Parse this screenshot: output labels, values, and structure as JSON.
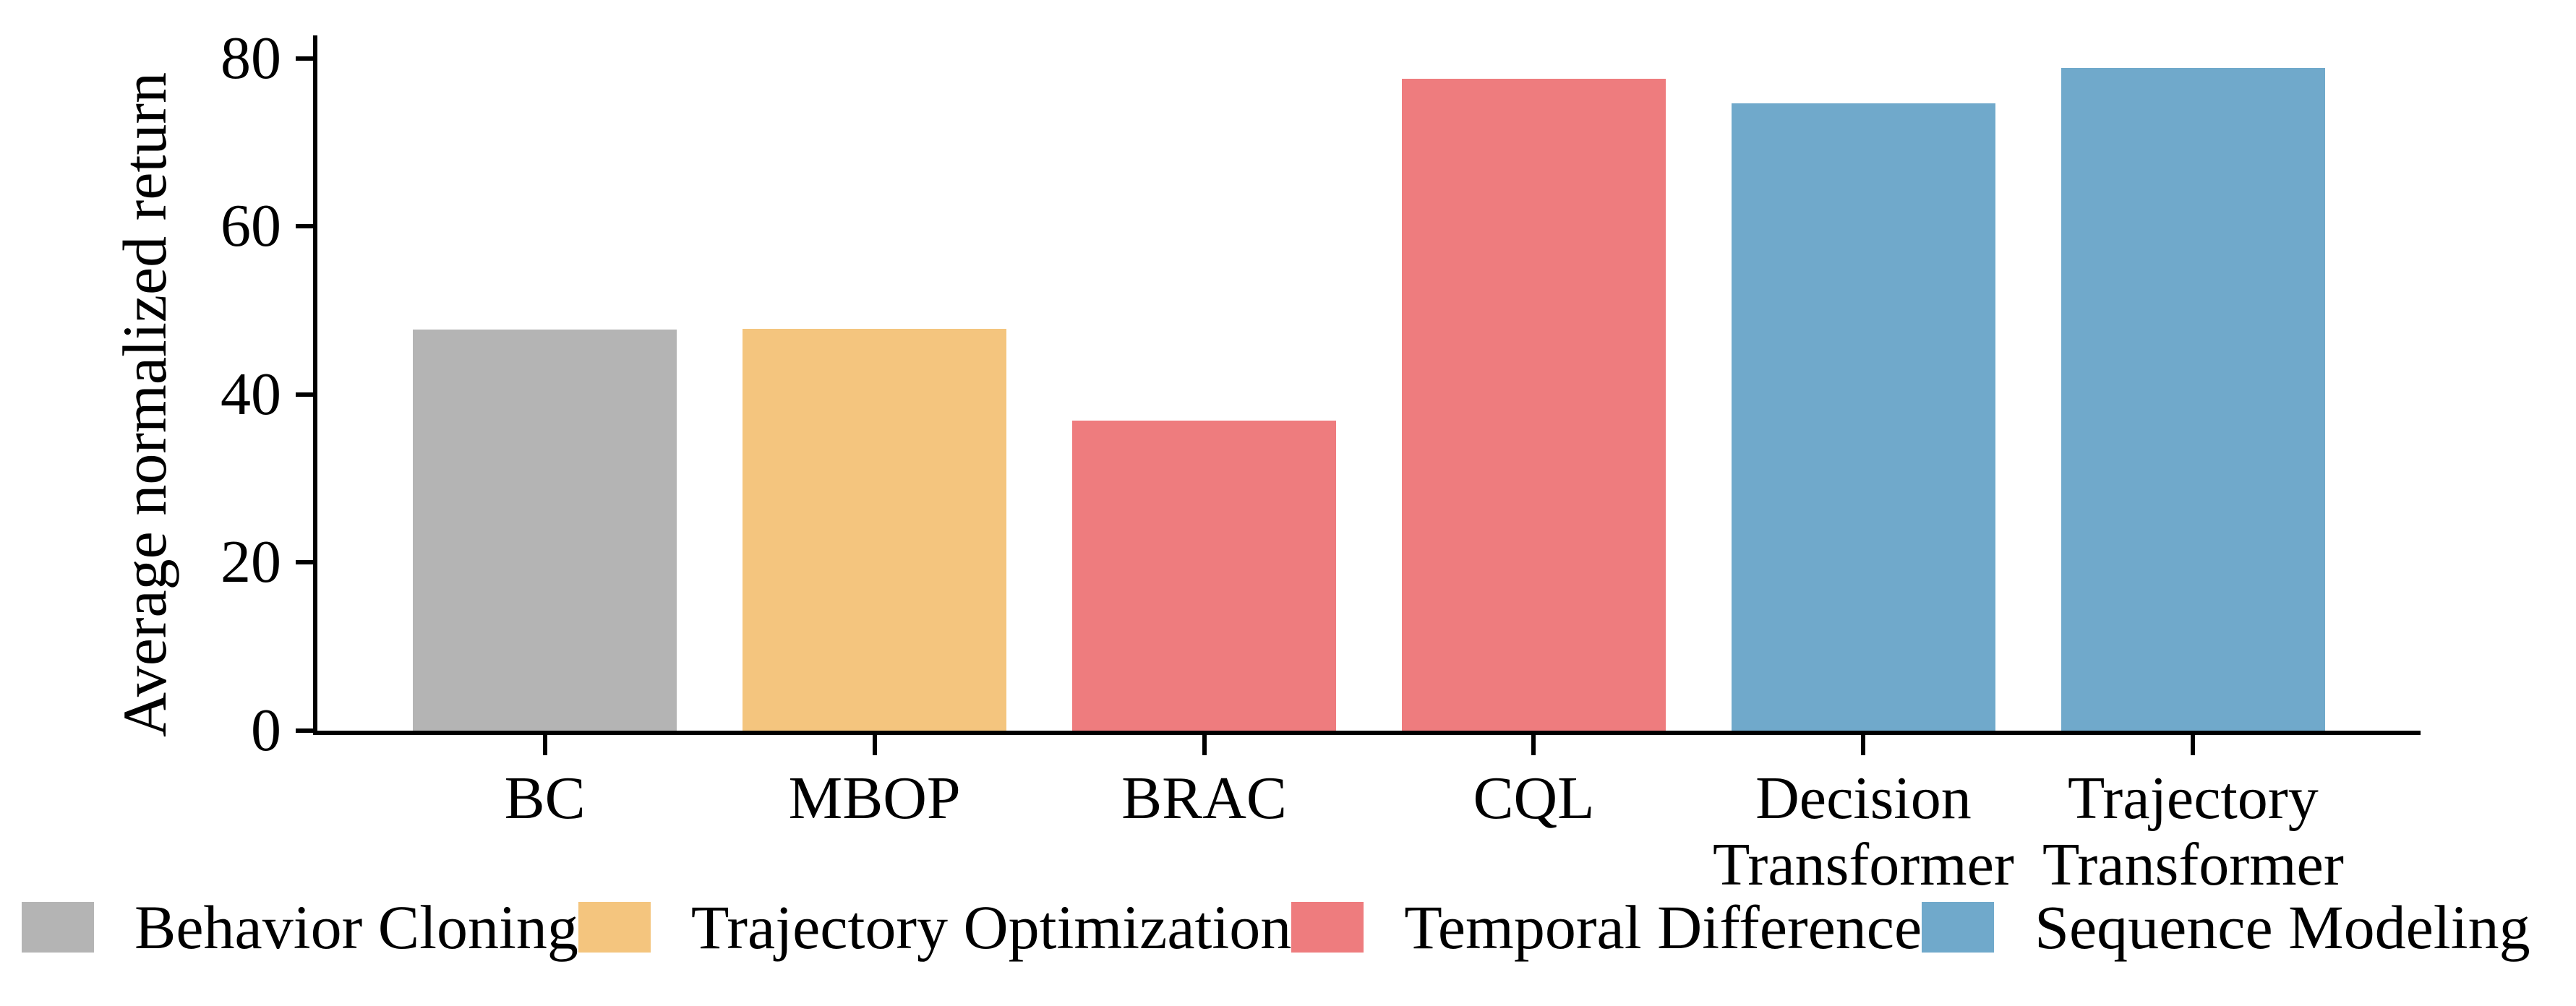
{
  "figure": {
    "background": "#ffffff",
    "axis_color": "#000000",
    "text_color": "#000000"
  },
  "chart_data": {
    "type": "bar",
    "title": "",
    "xlabel": "",
    "ylabel": "Average normalized return",
    "ylim": [
      0,
      82.75
    ],
    "yticks": [
      0,
      20,
      40,
      60,
      80
    ],
    "grid": false,
    "despined": [
      "top",
      "right"
    ],
    "categories": [
      "BC",
      "MBOP",
      "BRAC",
      "CQL",
      "Decision\nTransformer",
      "Trajectory\nTransformer"
    ],
    "values": [
      47.7,
      47.8,
      36.9,
      77.6,
      74.7,
      78.9
    ],
    "bar_colors": [
      "#B4B4B4",
      "#F4C57E",
      "#EE7C7E",
      "#EE7C7E",
      "#70A9CB",
      "#70A9CB"
    ],
    "series_of_bars": [
      {
        "category": "BC",
        "value": 47.7,
        "group": "Behavior Cloning"
      },
      {
        "category": "MBOP",
        "value": 47.8,
        "group": "Trajectory Optimization"
      },
      {
        "category": "BRAC",
        "value": 36.9,
        "group": "Temporal Difference"
      },
      {
        "category": "CQL",
        "value": 77.6,
        "group": "Temporal Difference"
      },
      {
        "category": "Decision Transformer",
        "value": 74.7,
        "group": "Sequence Modeling"
      },
      {
        "category": "Trajectory Transformer",
        "value": 78.9,
        "group": "Sequence Modeling"
      }
    ],
    "legend": {
      "position": "bottom",
      "items": [
        {
          "label": "Behavior Cloning",
          "color": "#B4B4B4"
        },
        {
          "label": "Trajectory Optimization",
          "color": "#F4C57E"
        },
        {
          "label": "Temporal Difference",
          "color": "#EE7C7E"
        },
        {
          "label": "Sequence Modeling",
          "color": "#70A9CB"
        }
      ]
    }
  }
}
